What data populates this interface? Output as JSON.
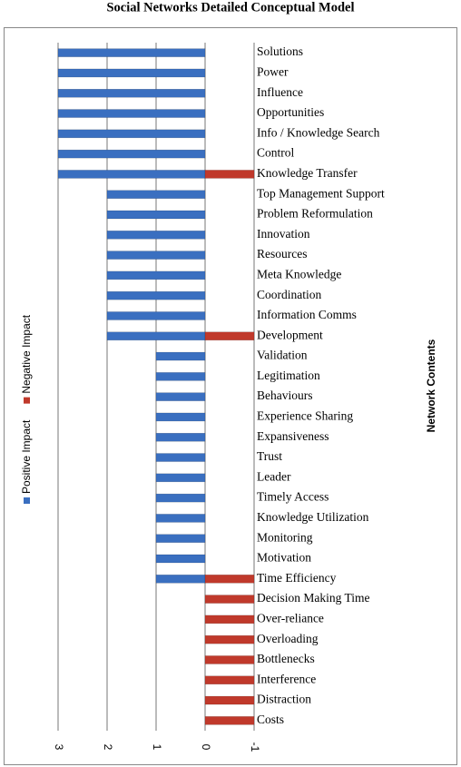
{
  "chart_data": {
    "type": "bar",
    "orientation": "horizontal",
    "title": "Social Networks Detailed Conceptual Model",
    "y_label": "Network Contents",
    "categories": [
      "Solutions",
      "Power",
      "Influence",
      "Opportunities",
      "Info / Knowledge Search",
      "Control",
      "Knowledge Transfer",
      "Top Management Support",
      "Problem Reformulation",
      "Innovation",
      "Resources",
      "Meta Knowledge",
      "Coordination",
      "Information Comms",
      "Development",
      "Validation",
      "Legitimation",
      "Behaviours",
      "Experience Sharing",
      "Expansiveness",
      "Trust",
      "Leader",
      "Timely Access",
      "Knowledge Utilization",
      "Monitoring",
      "Motivation",
      "Time Efficiency",
      "Decision Making Time",
      "Over-reliance",
      "Overloading",
      "Bottlenecks",
      "Interference",
      "Distraction",
      "Costs"
    ],
    "series": [
      {
        "name": "Positive Impact",
        "color": "#3a6fc0",
        "values": [
          3,
          3,
          3,
          3,
          3,
          3,
          3,
          2,
          2,
          2,
          2,
          2,
          2,
          2,
          2,
          1,
          1,
          1,
          1,
          1,
          1,
          1,
          1,
          1,
          1,
          1,
          1,
          0,
          0,
          0,
          0,
          0,
          0,
          0
        ]
      },
      {
        "name": "Negative Impact",
        "color": "#c0392b",
        "values": [
          0,
          0,
          0,
          0,
          0,
          0,
          -1,
          0,
          0,
          0,
          0,
          0,
          0,
          0,
          -1,
          0,
          0,
          0,
          0,
          0,
          0,
          0,
          0,
          0,
          0,
          0,
          -1,
          -1,
          -1,
          -1,
          -1,
          -1,
          -1,
          -1
        ]
      }
    ],
    "xlim": [
      3,
      -1
    ],
    "xticks": [
      3,
      2,
      1,
      0,
      -1
    ],
    "grid": true
  }
}
